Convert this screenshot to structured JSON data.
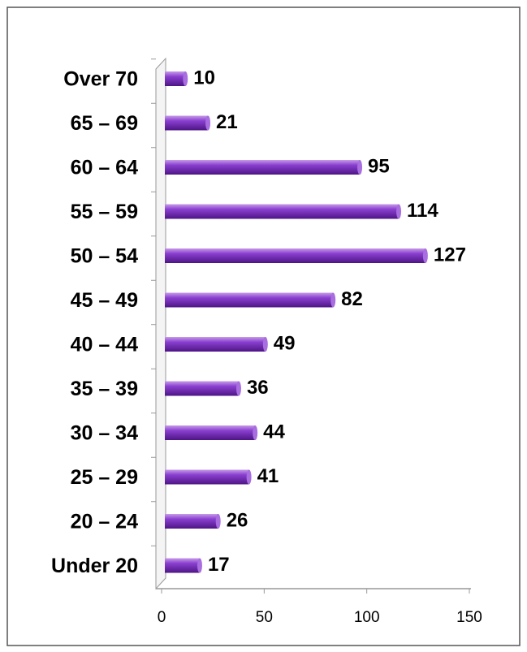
{
  "chart_data": {
    "type": "bar",
    "orientation": "horizontal",
    "categories": [
      "Over 70",
      "65 – 69",
      "60 – 64",
      "55 – 59",
      "50 – 54",
      "45 – 49",
      "40 – 44",
      "35 – 39",
      "30 – 34",
      "25 – 29",
      "20 – 24",
      "Under 20"
    ],
    "values": [
      10,
      21,
      95,
      114,
      127,
      82,
      49,
      36,
      44,
      41,
      26,
      17
    ],
    "color": "#7b2fbf",
    "xlim": [
      0,
      150
    ],
    "xticks": [
      0,
      50,
      100,
      150
    ]
  }
}
